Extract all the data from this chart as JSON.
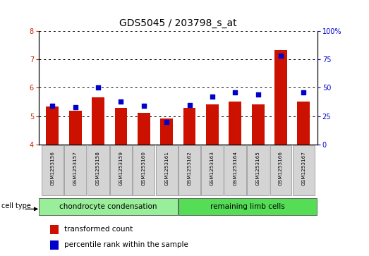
{
  "title": "GDS5045 / 203798_s_at",
  "samples": [
    "GSM1253156",
    "GSM1253157",
    "GSM1253158",
    "GSM1253159",
    "GSM1253160",
    "GSM1253161",
    "GSM1253162",
    "GSM1253163",
    "GSM1253164",
    "GSM1253165",
    "GSM1253166",
    "GSM1253167"
  ],
  "bar_values": [
    5.35,
    5.18,
    5.65,
    5.3,
    5.12,
    4.93,
    5.3,
    5.42,
    5.52,
    5.42,
    7.32,
    5.52
  ],
  "dot_values": [
    34,
    33,
    50,
    38,
    34,
    20,
    35,
    42,
    46,
    44,
    78,
    46
  ],
  "bar_color": "#cc1100",
  "dot_color": "#0000cc",
  "ylim_left": [
    4,
    8
  ],
  "ylim_right": [
    0,
    100
  ],
  "yticks_left": [
    4,
    5,
    6,
    7,
    8
  ],
  "yticks_right": [
    0,
    25,
    50,
    75,
    100
  ],
  "ytick_labels_right": [
    "0",
    "25",
    "50",
    "75",
    "100%"
  ],
  "group1_label": "chondrocyte condensation",
  "group2_label": "remaining limb cells",
  "group1_count": 6,
  "group2_count": 6,
  "cell_type_label": "cell type",
  "legend1_label": "transformed count",
  "legend2_label": "percentile rank within the sample",
  "bar_width": 0.55,
  "bg_plot": "#ffffff",
  "group1_color": "#99ee99",
  "group2_color": "#55dd55",
  "title_fontsize": 10,
  "tick_fontsize": 7,
  "label_fontsize": 7.5,
  "dot_size": 18,
  "bar_bottom": 4,
  "n_samples": 12
}
